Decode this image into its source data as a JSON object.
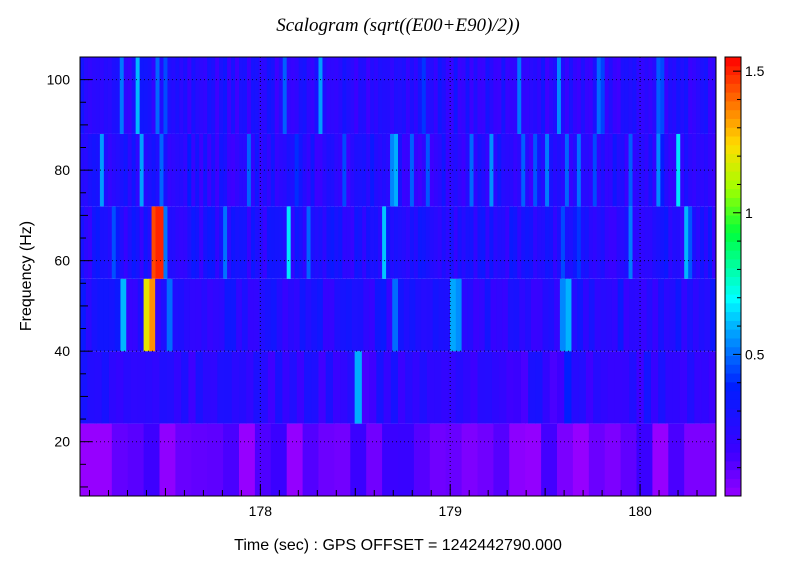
{
  "chart_data": {
    "type": "heatmap",
    "title": "Scalogram (sqrt((E00+E90)/2))",
    "xlabel": "Time (sec) : GPS OFFSET = 1242442790.000",
    "ylabel": "Frequency (Hz)",
    "xlim": [
      177.05,
      180.4
    ],
    "ylim": [
      8,
      105
    ],
    "x_ticks": [
      178,
      179,
      180
    ],
    "y_ticks": [
      20,
      40,
      60,
      80,
      100
    ],
    "colorbar": {
      "range": [
        0,
        1.55
      ],
      "ticks": [
        0.5,
        1,
        1.5
      ]
    },
    "grid": true,
    "frequency_bands": [
      {
        "name": "8-24 Hz",
        "range": [
          8,
          24
        ]
      },
      {
        "name": "24-40 Hz",
        "range": [
          24,
          40
        ]
      },
      {
        "name": "40-56 Hz",
        "range": [
          40,
          56
        ]
      },
      {
        "name": "56-72 Hz",
        "range": [
          56,
          72
        ]
      },
      {
        "name": "72-88 Hz",
        "range": [
          72,
          88
        ]
      },
      {
        "name": "88-105 Hz",
        "range": [
          88,
          105
        ]
      }
    ],
    "hotspots": [
      {
        "time": 177.47,
        "freq_range": [
          56,
          72
        ],
        "value": 1.5
      },
      {
        "time": 177.43,
        "freq_range": [
          56,
          72
        ],
        "value": 1.45
      },
      {
        "time": 177.43,
        "freq_range": [
          40,
          56
        ],
        "value": 1.35
      },
      {
        "time": 177.39,
        "freq_range": [
          40,
          56
        ],
        "value": 1.2
      },
      {
        "time": 177.51,
        "freq_range": [
          40,
          56
        ],
        "value": 0.5
      },
      {
        "time": 178.72,
        "freq_range": [
          40,
          56
        ],
        "value": 0.5
      },
      {
        "time": 178.45,
        "freq_range": [
          72,
          88
        ],
        "value": 0.45
      },
      {
        "time": 179.76,
        "freq_range": [
          72,
          88
        ],
        "value": 0.45
      },
      {
        "time": 179.6,
        "freq_range": [
          56,
          72
        ],
        "value": 0.45
      },
      {
        "time": 180.12,
        "freq_range": [
          88,
          105
        ],
        "value": 0.45
      }
    ]
  }
}
